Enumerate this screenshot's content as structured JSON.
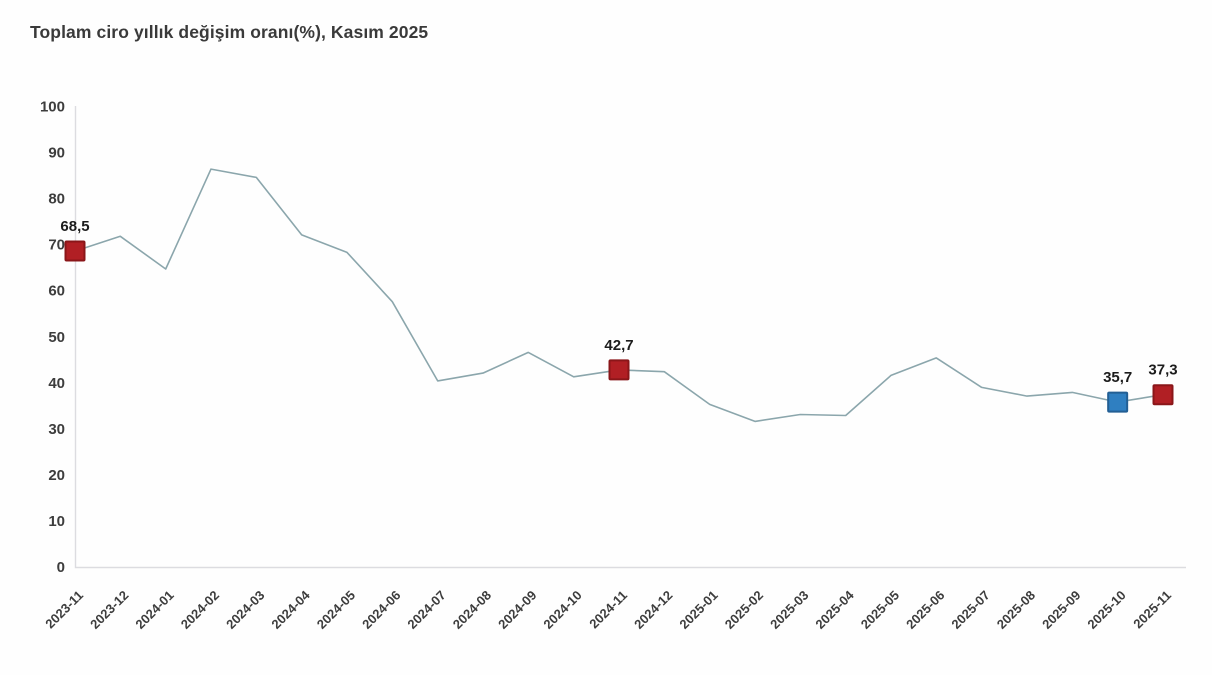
{
  "chart_data": {
    "type": "line",
    "title": "Toplam ciro yıllık değişim oranı(%), Kasım 2025",
    "x": [
      "2023-11",
      "2023-12",
      "2024-01",
      "2024-02",
      "2024-03",
      "2024-04",
      "2024-05",
      "2024-06",
      "2024-07",
      "2024-08",
      "2024-09",
      "2024-10",
      "2024-11",
      "2024-12",
      "2025-01",
      "2025-02",
      "2025-03",
      "2025-04",
      "2025-05",
      "2025-06",
      "2025-07",
      "2025-08",
      "2025-09",
      "2025-10",
      "2025-11"
    ],
    "values": [
      68.5,
      71.7,
      64.6,
      86.3,
      84.5,
      72.0,
      68.2,
      57.5,
      40.3,
      42.0,
      46.5,
      41.2,
      42.7,
      42.3,
      35.2,
      31.5,
      33.0,
      32.8,
      41.5,
      45.3,
      38.9,
      37.0,
      37.8,
      35.7,
      37.3
    ],
    "ylim": [
      0,
      100
    ],
    "ytick_step": 10,
    "grid": false,
    "legend": "none",
    "xlabel": "",
    "ylabel": "",
    "annotations": [
      {
        "index": 0,
        "label": "68,5",
        "value": 68.5,
        "marker": "square",
        "fill": "#b11f24",
        "border": "#8a1619"
      },
      {
        "index": 12,
        "label": "42,7",
        "value": 42.7,
        "marker": "square",
        "fill": "#b11f24",
        "border": "#8a1619"
      },
      {
        "index": 23,
        "label": "35,7",
        "value": 35.7,
        "marker": "square",
        "fill": "#2f7fc1",
        "border": "#235f94"
      },
      {
        "index": 24,
        "label": "37,3",
        "value": 37.3,
        "marker": "square",
        "fill": "#b11f24",
        "border": "#8a1619"
      }
    ],
    "colors": {
      "line": "#8ba6ac",
      "axis": "#dcdce0",
      "tick_text": "#3d3d3d",
      "title_text": "#3a3a3a",
      "label_text": "#1c1c1c",
      "background": "#fefefe"
    }
  }
}
